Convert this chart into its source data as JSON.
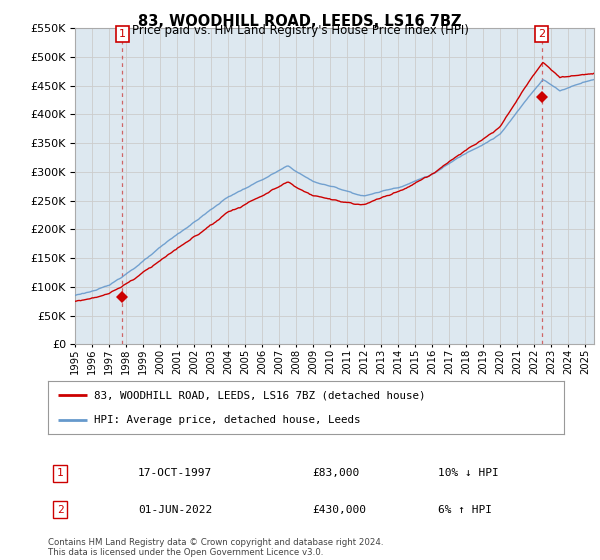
{
  "title": "83, WOODHILL ROAD, LEEDS, LS16 7BZ",
  "subtitle": "Price paid vs. HM Land Registry's House Price Index (HPI)",
  "hpi_label": "HPI: Average price, detached house, Leeds",
  "property_label": "83, WOODHILL ROAD, LEEDS, LS16 7BZ (detached house)",
  "sale1_date": "17-OCT-1997",
  "sale1_price": 83000,
  "sale1_note": "10% ↓ HPI",
  "sale2_date": "01-JUN-2022",
  "sale2_price": 430000,
  "sale2_note": "6% ↑ HPI",
  "sale1_year": 1997.79,
  "sale2_year": 2022.42,
  "ylim_max": 550000,
  "xlim_start": 1995.0,
  "xlim_end": 2025.5,
  "hpi_color": "#6699cc",
  "property_color": "#cc0000",
  "marker_color": "#cc0000",
  "grid_color": "#cccccc",
  "plot_bg_color": "#dde8f0",
  "background_color": "#ffffff",
  "footnote": "Contains HM Land Registry data © Crown copyright and database right 2024.\nThis data is licensed under the Open Government Licence v3.0."
}
